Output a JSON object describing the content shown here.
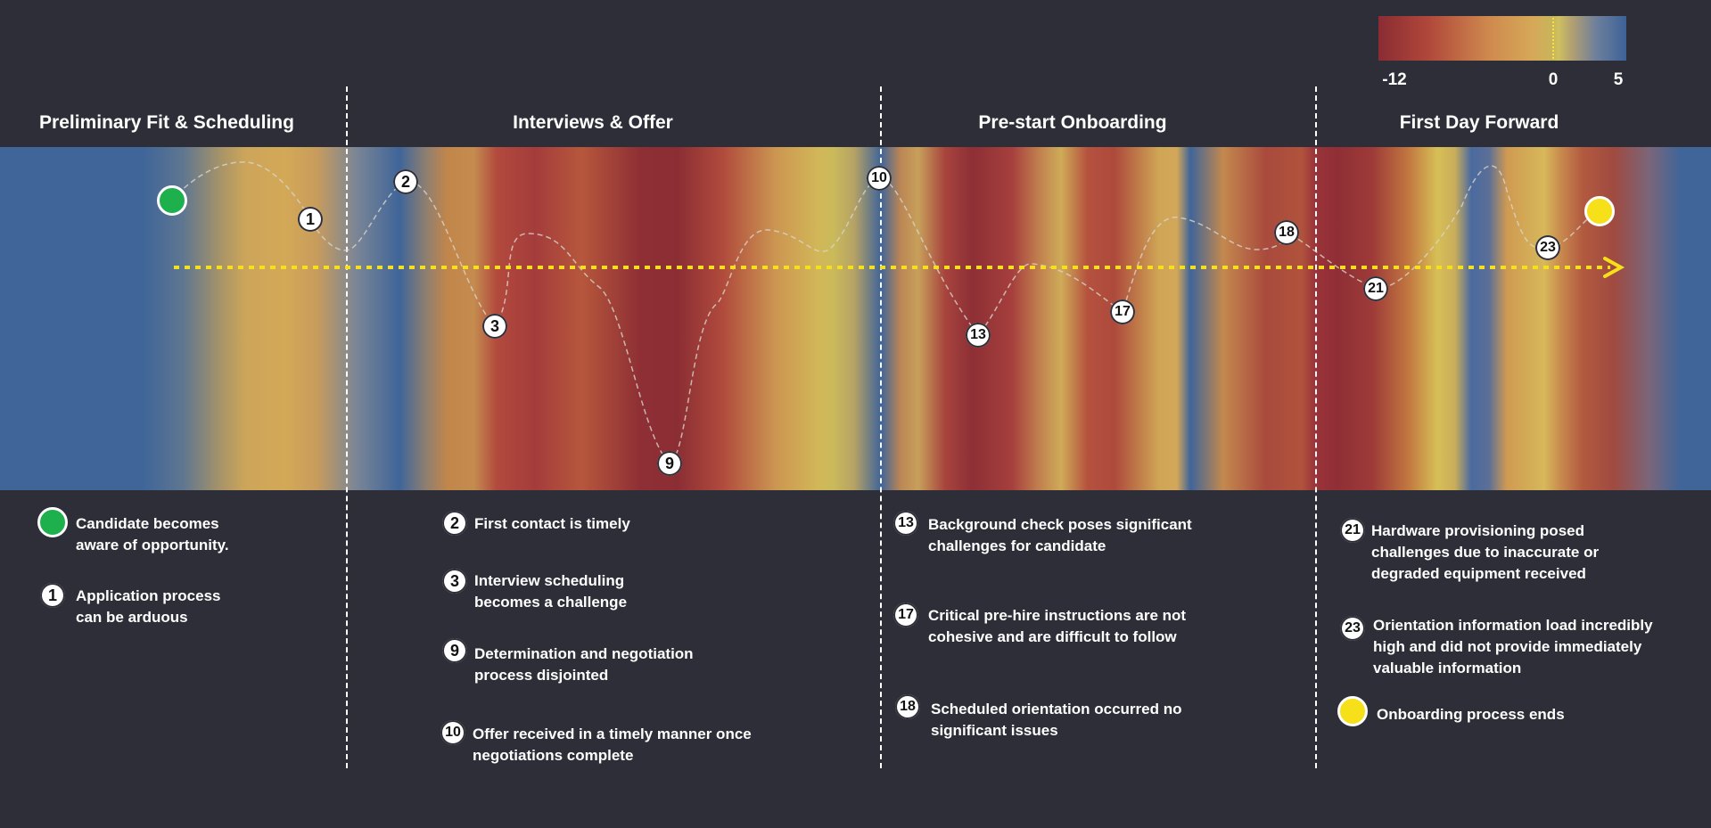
{
  "legend": {
    "ticks": [
      "-12",
      "0",
      "5"
    ],
    "colors": {
      "low": "#8a2c33",
      "zero": "#d6a858",
      "high": "#3d6298",
      "zero_line": "#f5e33b"
    }
  },
  "phases": [
    "Preliminary Fit & Scheduling",
    "Interviews & Offer",
    "Pre-start Onboarding",
    "First Day Forward"
  ],
  "journey": {
    "start_marker": "green-circle-icon",
    "end_marker": "yellow-circle-icon",
    "arrow": "dotted-arrow-right-icon",
    "points": [
      "1",
      "2",
      "3",
      "9",
      "10",
      "13",
      "17",
      "18",
      "21",
      "23"
    ]
  },
  "notes": {
    "start": [
      "Candidate becomes",
      "aware of opportunity."
    ],
    "n1": [
      "Application process",
      "can be arduous"
    ],
    "n2": [
      "First contact is timely"
    ],
    "n3": [
      "Interview scheduling",
      "becomes a challenge"
    ],
    "n9": [
      "Determination and negotiation",
      "process disjointed"
    ],
    "n10": [
      "Offer received in a timely manner once",
      "negotiations complete"
    ],
    "n13": [
      "Background check poses significant",
      "challenges for candidate"
    ],
    "n17": [
      "Critical pre-hire instructions are not",
      "cohesive and are difficult to follow"
    ],
    "n18": [
      "Scheduled orientation occurred no",
      "significant issues"
    ],
    "n21": [
      "Hardware provisioning posed",
      "challenges due to inaccurate or",
      "degraded equipment received"
    ],
    "n23": [
      "Orientation information load incredibly",
      "high and did not provide immediately",
      "valuable information"
    ],
    "end": [
      "Onboarding process ends"
    ]
  }
}
